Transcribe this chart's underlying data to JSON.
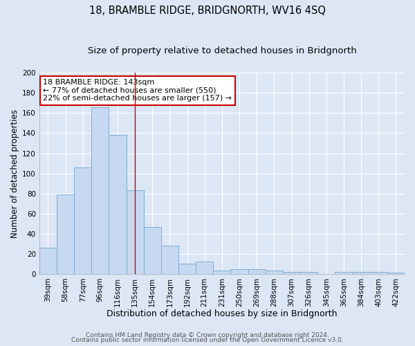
{
  "title": "18, BRAMBLE RIDGE, BRIDGNORTH, WV16 4SQ",
  "subtitle": "Size of property relative to detached houses in Bridgnorth",
  "xlabel": "Distribution of detached houses by size in Bridgnorth",
  "ylabel": "Number of detached properties",
  "bar_labels": [
    "39sqm",
    "58sqm",
    "77sqm",
    "96sqm",
    "116sqm",
    "135sqm",
    "154sqm",
    "173sqm",
    "192sqm",
    "211sqm",
    "231sqm",
    "250sqm",
    "269sqm",
    "288sqm",
    "307sqm",
    "326sqm",
    "345sqm",
    "365sqm",
    "384sqm",
    "403sqm",
    "422sqm"
  ],
  "bar_heights": [
    26,
    79,
    106,
    166,
    138,
    83,
    47,
    28,
    10,
    12,
    3,
    5,
    5,
    3,
    2,
    2,
    0,
    2,
    2,
    2,
    1
  ],
  "bar_color": "#c6d9f0",
  "bar_edge_color": "#7bafd4",
  "ylim": [
    0,
    200
  ],
  "yticks": [
    0,
    20,
    40,
    60,
    80,
    100,
    120,
    140,
    160,
    180,
    200
  ],
  "vline_x": 5.0,
  "vline_color": "#cc0000",
  "annotation_text": "18 BRAMBLE RIDGE: 143sqm\n← 77% of detached houses are smaller (550)\n22% of semi-detached houses are larger (157) →",
  "annotation_box_color": "#ffffff",
  "annotation_box_edge": "#cc0000",
  "bg_color": "#dce6f5",
  "plot_bg_color": "#dce6f5",
  "footer1": "Contains HM Land Registry data © Crown copyright and database right 2024.",
  "footer2": "Contains public sector information licensed under the Open Government Licence v3.0.",
  "grid_color": "#ffffff",
  "title_fontsize": 10.5,
  "subtitle_fontsize": 9.5,
  "xlabel_fontsize": 9,
  "ylabel_fontsize": 8.5,
  "tick_fontsize": 7.5,
  "footer_fontsize": 6.5
}
